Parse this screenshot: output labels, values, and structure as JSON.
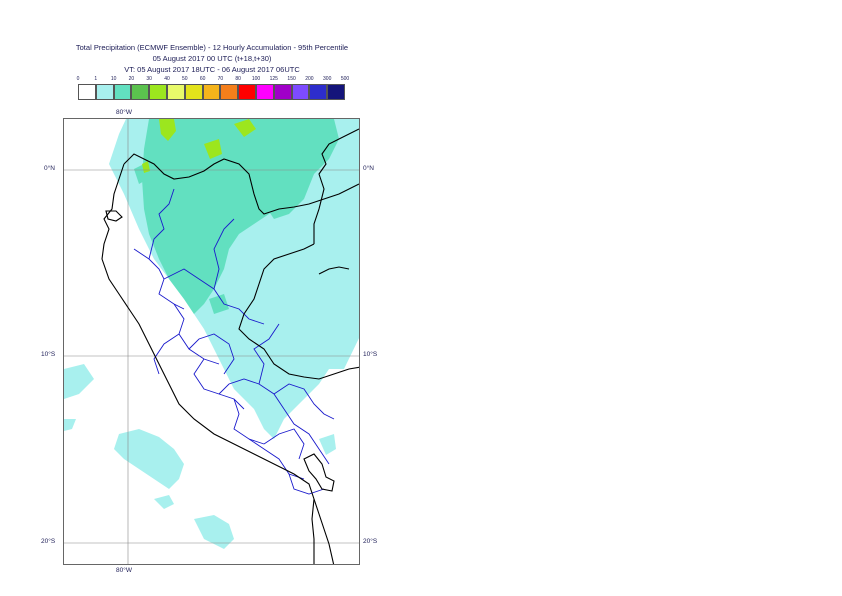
{
  "title": {
    "line1": "Total Precipitation (ECMWF Ensemble) - 12 Hourly Accumulation - 95th Percentile",
    "line2": "05 August 2017 00 UTC (t+18,t+30)",
    "line3": "VT: 05 August 2017 18UTC - 06 August 2017 06UTC"
  },
  "legend": {
    "labels": [
      "0",
      "1",
      "10",
      "20",
      "30",
      "40",
      "50",
      "60",
      "70",
      "80",
      "100",
      "125",
      "150",
      "200",
      "300",
      "500"
    ],
    "colors": [
      "#ffffff",
      "#a8f0ee",
      "#62e0c0",
      "#5bc24e",
      "#9ce61e",
      "#e8fa6a",
      "#e3e31b",
      "#f5b41b",
      "#f57f1b",
      "#ff0000",
      "#ff00ff",
      "#a000c8",
      "#7d4bff",
      "#2d2dcc",
      "#14147a"
    ]
  },
  "axes": {
    "lon_top": "80°W",
    "lon_bottom": "80°W",
    "lat_0_left": "0°N",
    "lat_0_right": "0°N",
    "lat_10_left": "10°S",
    "lat_10_right": "10°S",
    "lat_20_left": "20°S",
    "lat_20_right": "20°S"
  },
  "map": {
    "light_precip_color": "#a8f0ee",
    "medium_precip_color": "#62e0c0",
    "heavy_precip_color": "#9ce61e",
    "coast_color": "#000000",
    "region_border_color": "#1a1acc",
    "grid_color": "#888888"
  }
}
